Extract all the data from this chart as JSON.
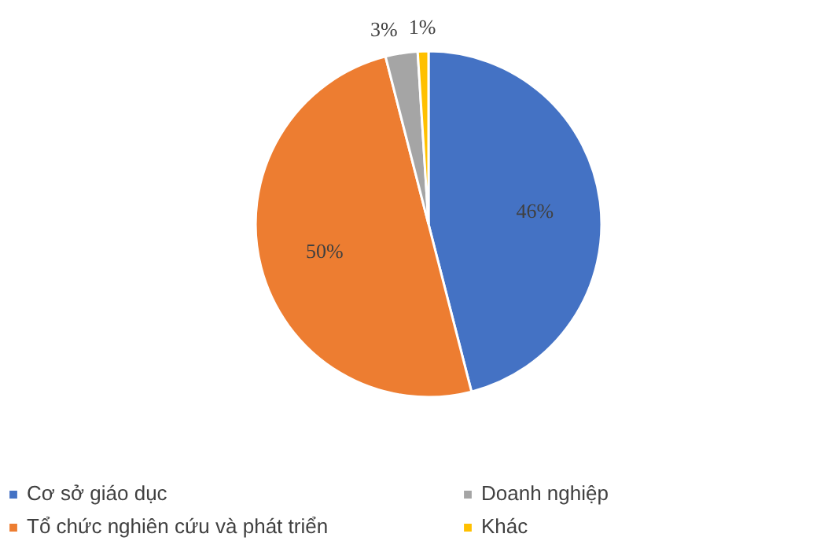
{
  "chart_data": {
    "type": "pie",
    "categories": [
      "Cơ sở giáo dục",
      "Tổ chức nghiên cứu và phát triển",
      "Doanh nghiệp",
      "Khác"
    ],
    "values": [
      46,
      50,
      3,
      1
    ],
    "colors": [
      "#4472c4",
      "#ed7d31",
      "#a5a5a5",
      "#ffc000"
    ],
    "value_labels": [
      "46%",
      "50%",
      "3%",
      "1%"
    ],
    "legend": "bottom"
  }
}
